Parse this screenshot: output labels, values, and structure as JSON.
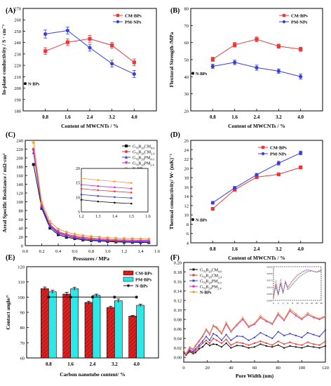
{
  "chart_data": [
    {
      "panel": "(A)",
      "type": "line",
      "xlabel": "Content of MWCNTs / %",
      "ylabel": "In-plane conductivity / S · cm⁻¹",
      "ylim": [
        180,
        270
      ],
      "yticks": [
        "180",
        "190",
        "200",
        "210",
        "220",
        "230",
        "240",
        "250",
        "260",
        "270"
      ],
      "x": [
        "0.8",
        "1.6",
        "2.4",
        "3.2",
        "4.0"
      ],
      "series": [
        {
          "name": "CM-BPs",
          "color": "#e8393a",
          "marker": "square",
          "values": [
            232.5,
            240.3,
            243.3,
            237.6,
            222.6
          ],
          "err": [
            3,
            3,
            3,
            2.5,
            3
          ]
        },
        {
          "name": "PM-NPs",
          "color": "#3a3fd8",
          "marker": "circle",
          "values": [
            247.5,
            250.6,
            235.5,
            221.5,
            212.4
          ],
          "err": [
            3.5,
            3,
            3,
            3,
            3
          ]
        }
      ],
      "point_label": {
        "text": "N-BPs",
        "value": 204
      },
      "legend": "top-right",
      "grid": false
    },
    {
      "panel": "(B)",
      "type": "line",
      "xlabel": "Content of MWCNTs / %",
      "ylabel": "Flextural Strength /MPa",
      "ylim": [
        20,
        80
      ],
      "yticks": [
        "20",
        "30",
        "40",
        "50",
        "60",
        "70",
        "80"
      ],
      "x": [
        "0.8",
        "1.6",
        "2.4",
        "3.2",
        "4.0"
      ],
      "series": [
        {
          "name": "CM-BPs",
          "color": "#e8393a",
          "marker": "square",
          "values": [
            50.2,
            58.7,
            61.9,
            57.9,
            56.1
          ],
          "err": [
            1.2,
            1.3,
            1.4,
            1.2,
            1.2
          ]
        },
        {
          "name": "PM-NPs",
          "color": "#3a3fd8",
          "marker": "circle",
          "values": [
            46.1,
            48.4,
            45.3,
            43.3,
            40.1
          ],
          "err": [
            1.2,
            1.3,
            1.5,
            1.3,
            1.5
          ]
        }
      ],
      "point_label": {
        "text": "N-BPs",
        "value": 42
      },
      "legend": "top-right",
      "grid": false
    },
    {
      "panel": "(C)",
      "type": "line",
      "xlabel": "Pressures / MPa",
      "ylabel": "Areal Specific Resistance / mΩ·cm²",
      "ylim": [
        0,
        240
      ],
      "yticks": [
        "0",
        "20",
        "40",
        "60",
        "80",
        "100",
        "120",
        "140",
        "160",
        "180",
        "200",
        "220",
        "240"
      ],
      "xticks": [
        "0.0",
        "0.2",
        "0.4",
        "0.6",
        "0.8",
        "1.0",
        "1.2",
        "1.4",
        "1.6"
      ],
      "x": [
        0.1,
        0.2,
        0.3,
        0.4,
        0.5,
        0.6,
        0.7,
        0.8,
        0.9,
        1.0,
        1.1,
        1.2,
        1.3,
        1.4,
        1.5
      ],
      "series": [
        {
          "name": "G76R20CM4.0",
          "label_parts": [
            "G",
            "76",
            "R",
            "20",
            "CM",
            "4.0"
          ],
          "color": "#111111",
          "marker": "square",
          "values": [
            185,
            85,
            40,
            25,
            19,
            16,
            13,
            11.5,
            10.5,
            9.5,
            8.5,
            8,
            7.5,
            7.2,
            7
          ]
        },
        {
          "name": "G76R20CM2.4",
          "label_parts": [
            "G",
            "76",
            "R",
            "20",
            "CM",
            "2.4"
          ],
          "color": "#e8393a",
          "marker": "circle",
          "values": [
            220,
            90,
            46,
            30,
            24,
            20,
            17,
            15,
            13.5,
            12.5,
            11.5,
            11,
            10.5,
            10.2,
            10
          ]
        },
        {
          "name": "G76R20PM4.0",
          "label_parts": [
            "G",
            "76",
            "R",
            "20",
            "PM",
            "4.0"
          ],
          "color": "#3a3fd8",
          "marker": "triangle",
          "values": [
            212,
            88,
            44,
            28,
            22,
            18,
            15,
            13,
            12,
            11,
            10,
            9.5,
            9,
            8.8,
            8.5
          ]
        },
        {
          "name": "G76R20PM2.4",
          "label_parts": [
            "G",
            "76",
            "R",
            "20",
            "PM",
            "2.4"
          ],
          "color": "#c72ec4",
          "marker": "triangle-down",
          "values": [
            216,
            92,
            48,
            32,
            26,
            22,
            19,
            17,
            15.5,
            14.5,
            13.5,
            13,
            12.5,
            12.2,
            12
          ]
        },
        {
          "name": "N-BPs",
          "color": "#f29a38",
          "marker": "star",
          "values": [
            235,
            98,
            55,
            38,
            31,
            26,
            23,
            21,
            19.5,
            18,
            17,
            16.5,
            16,
            15.5,
            15
          ]
        }
      ],
      "inset": {
        "xlim": [
          1.2,
          1.6
        ],
        "ylim": [
          5,
          20
        ],
        "xticks": [
          "1.2",
          "1.3",
          "1.4",
          "1.5",
          "1.6"
        ],
        "yticks": [
          "5",
          "10",
          "15",
          "20"
        ],
        "x": [
          1.2,
          1.3,
          1.4,
          1.5
        ],
        "series": [
          {
            "color": "#111111",
            "values": [
              9.2,
              8.6,
              8.2,
              7.9
            ]
          },
          {
            "color": "#e8393a",
            "values": [
              13.0,
              12.5,
              12.1,
              11.7
            ]
          },
          {
            "color": "#3a3fd8",
            "values": [
              11.0,
              10.5,
              10.1,
              9.8
            ]
          },
          {
            "color": "#c72ec4",
            "values": [
              14.4,
              13.9,
              13.5,
              13.1
            ]
          },
          {
            "color": "#f29a38",
            "values": [
              16.6,
              16.0,
              15.5,
              15.0
            ]
          }
        ]
      },
      "legend": "top-right",
      "grid": false
    },
    {
      "panel": "(D)",
      "type": "line",
      "xlabel": "Content of MWCNTs / %",
      "ylabel": "Thermal conductivity/ W· (mK)⁻¹",
      "ylim": [
        4,
        26
      ],
      "yticks": [
        "4",
        "6",
        "8",
        "10",
        "12",
        "14",
        "16",
        "18",
        "20",
        "22",
        "24",
        "26"
      ],
      "x": [
        "0.8",
        "1.6",
        "2.4",
        "3.2",
        "4.0"
      ],
      "series": [
        {
          "name": "CM-BPs",
          "color": "#e8393a",
          "marker": "square",
          "values": [
            11.3,
            15.4,
            18.1,
            18.7,
            20.2
          ],
          "err": [
            0.3,
            0.3,
            0.3,
            0.3,
            0.3
          ]
        },
        {
          "name": "PM-NPs",
          "color": "#3a3fd8",
          "marker": "circle",
          "values": [
            12.6,
            15.8,
            18.6,
            21.1,
            23.3
          ],
          "err": [
            0.3,
            0.3,
            0.3,
            0.4,
            0.4
          ]
        }
      ],
      "point_label": {
        "text": "N-BPs",
        "value": 9.0
      },
      "legend": "top-left",
      "grid": false
    },
    {
      "panel": "(E)",
      "type": "bar",
      "xlabel": "Carbon nanotube content/ %",
      "ylabel": "Contact angle/°",
      "ylim": [
        60,
        120
      ],
      "yticks": [
        "60",
        "70",
        "80",
        "90",
        "100",
        "110",
        "120"
      ],
      "categories": [
        "0.8",
        "1.6",
        "2.4",
        "3.2",
        "4.0"
      ],
      "series": [
        {
          "name": "CM-BPs",
          "color": "#e02020",
          "hatch": true,
          "values": [
            105.6,
            102.0,
            96.5,
            93.2,
            87.5
          ],
          "err": [
            1,
            1.2,
            0.8,
            0.8,
            0.5
          ]
        },
        {
          "name": "PM-BPs",
          "color": "#2ee8e8",
          "values": [
            103.5,
            105.5,
            101.2,
            97.6,
            94.6
          ],
          "err": [
            1,
            1,
            0.8,
            1.2,
            0.8
          ]
        },
        {
          "name": "N-BPs",
          "color": "#111111",
          "type": "line",
          "values": [
            100.0,
            100.0,
            100.0,
            100.0,
            100.0
          ]
        }
      ],
      "legend": "top-right",
      "grid": false
    },
    {
      "panel": "(F)",
      "type": "line",
      "xlabel": "Pore Width (nm)",
      "ylabel": "",
      "ylim": [
        -0.01,
        0.2
      ],
      "yticks": [
        "0.00",
        "0.02",
        "0.04",
        "0.06",
        "0.08",
        "0.10",
        "0.12",
        "0.14",
        "0.16",
        "0.18",
        "0.20"
      ],
      "xticks": [
        "0",
        "20",
        "40",
        "60",
        "80",
        "100",
        "120"
      ],
      "x": [
        0,
        2,
        5,
        8,
        10,
        13,
        16,
        19,
        22,
        25,
        28,
        32,
        36,
        40,
        45,
        50,
        55,
        60,
        65,
        70,
        75,
        80,
        85,
        90,
        95,
        100,
        105,
        110,
        115,
        120
      ],
      "series": [
        {
          "name": "G76R20CM4.0",
          "label_parts": [
            "G",
            "76",
            "R",
            "20",
            "CM",
            "4.0"
          ],
          "color": "#111111",
          "values": [
            0.01,
            0.005,
            0.012,
            0.008,
            0.01,
            0.018,
            0.022,
            0.03,
            0.025,
            0.028,
            0.027,
            0.022,
            0.03,
            0.02,
            0.025,
            0.024,
            0.02,
            0.022,
            0.028,
            0.024,
            0.022,
            0.026,
            0.02,
            0.024,
            0.022,
            0.02,
            0.024,
            0.022,
            0.02,
            0.024
          ]
        },
        {
          "name": "G76R20CM2.4",
          "label_parts": [
            "G",
            "76",
            "R",
            "20",
            "CM",
            "2.4"
          ],
          "color": "#e8393a",
          "values": [
            0.01,
            0.006,
            0.014,
            0.01,
            0.014,
            0.022,
            0.03,
            0.036,
            0.03,
            0.04,
            0.036,
            0.03,
            0.038,
            0.026,
            0.032,
            0.03,
            0.026,
            0.03,
            0.034,
            0.03,
            0.026,
            0.034,
            0.028,
            0.032,
            0.028,
            0.026,
            0.032,
            0.028,
            0.026,
            0.034
          ]
        },
        {
          "name": "G76R20PM4.0",
          "label_parts": [
            "G",
            "76",
            "R",
            "20",
            "PM",
            "4.0"
          ],
          "color": "#3a3fd8",
          "values": [
            0.012,
            0.006,
            0.016,
            0.012,
            0.018,
            0.026,
            0.034,
            0.044,
            0.036,
            0.05,
            0.046,
            0.036,
            0.048,
            0.036,
            0.045,
            0.044,
            0.036,
            0.042,
            0.052,
            0.046,
            0.04,
            0.054,
            0.046,
            0.05,
            0.046,
            0.042,
            0.052,
            0.048,
            0.044,
            0.058
          ]
        },
        {
          "name": "G76R20PM2.4",
          "label_parts": [
            "G",
            "76",
            "R",
            "20",
            "PM",
            "2.4"
          ],
          "color": "#c72ec4",
          "values": [
            0.014,
            0.007,
            0.02,
            0.016,
            0.024,
            0.034,
            0.044,
            0.058,
            0.048,
            0.066,
            0.062,
            0.05,
            0.07,
            0.054,
            0.068,
            0.08,
            0.064,
            0.07,
            0.084,
            0.076,
            0.07,
            0.09,
            0.078,
            0.098,
            0.088,
            0.08,
            0.09,
            0.084,
            0.08,
            0.086
          ]
        },
        {
          "name": "N-BPs",
          "color": "#f29a38",
          "values": [
            0.015,
            0.008,
            0.022,
            0.018,
            0.026,
            0.036,
            0.046,
            0.06,
            0.05,
            0.068,
            0.064,
            0.052,
            0.074,
            0.056,
            0.07,
            0.084,
            0.066,
            0.072,
            0.088,
            0.078,
            0.072,
            0.094,
            0.08,
            0.102,
            0.092,
            0.082,
            0.094,
            0.086,
            0.082,
            0.088
          ]
        }
      ],
      "inset": {
        "xlim": [
          0,
          20
        ],
        "ylim": [
          0,
          0.025
        ],
        "xticks": [
          "0",
          "2",
          "4",
          "6",
          "8",
          "10",
          "12",
          "14",
          "16",
          "18",
          "20"
        ],
        "yticks": [
          "0.000",
          "0.005",
          "0.010",
          "0.015",
          "0.020",
          "0.025"
        ],
        "x": [
          0,
          1,
          2,
          3,
          4,
          5,
          6,
          8,
          10,
          12,
          14,
          16,
          18,
          20
        ],
        "series": [
          {
            "color": "#111111",
            "values": [
              0.002,
              0.012,
              0.004,
              0.013,
              0.005,
              0.014,
              0.008,
              0.012,
              0.016,
              0.019,
              0.021,
              0.022,
              0.021,
              0.022
            ]
          },
          {
            "color": "#e8393a",
            "values": [
              0.002,
              0.015,
              0.005,
              0.016,
              0.006,
              0.015,
              0.009,
              0.014,
              0.018,
              0.021,
              0.022,
              0.022,
              0.021,
              0.023
            ]
          },
          {
            "color": "#3a3fd8",
            "values": [
              0.003,
              0.01,
              0.004,
              0.012,
              0.006,
              0.013,
              0.01,
              0.015,
              0.019,
              0.021,
              0.023,
              0.022,
              0.021,
              0.022
            ]
          }
        ]
      },
      "legend": "top-left",
      "grid": false
    }
  ]
}
